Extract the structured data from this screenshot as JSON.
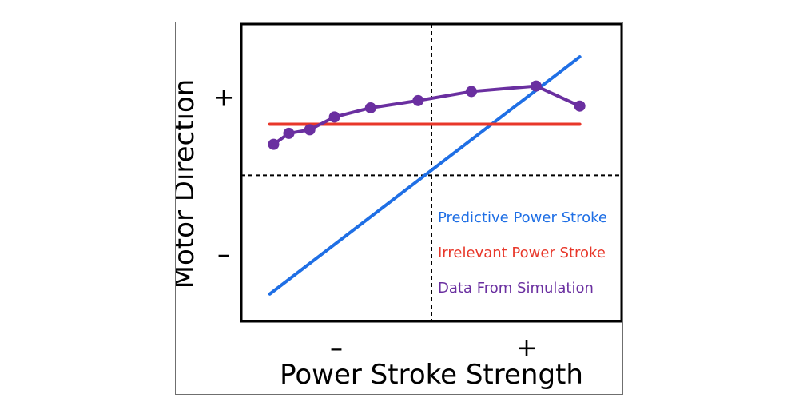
{
  "chart_data": {
    "type": "line",
    "xlabel": "Power Stroke Strength",
    "ylabel": "Motor Direction",
    "x_ticks": [
      {
        "x": -0.5,
        "label": "–"
      },
      {
        "x": 0.5,
        "label": "+"
      }
    ],
    "y_ticks": [
      {
        "y": 0.43,
        "label": "+"
      },
      {
        "y": -0.43,
        "label": "–"
      }
    ],
    "xlim": [
      -1,
      1
    ],
    "ylim": [
      -0.8,
      0.83
    ],
    "reference_lines": {
      "x": 0,
      "y": 0,
      "style": "dashed"
    },
    "legend_position": "bottom-right",
    "series": [
      {
        "name": "Predictive Power Stroke",
        "color": "#1f6fe5",
        "kind": "line",
        "points": [
          [
            -0.85,
            -0.65
          ],
          [
            0.78,
            0.65
          ]
        ]
      },
      {
        "name": "Irrelevant Power Stroke",
        "color": "#e8372a",
        "kind": "line",
        "points": [
          [
            -0.85,
            0.28
          ],
          [
            0.78,
            0.28
          ]
        ]
      },
      {
        "name": "Data From Simulation",
        "color": "#6a2fa0",
        "kind": "line+markers",
        "points": [
          [
            -0.83,
            0.17
          ],
          [
            -0.75,
            0.23
          ],
          [
            -0.64,
            0.25
          ],
          [
            -0.51,
            0.32
          ],
          [
            -0.32,
            0.37
          ],
          [
            -0.07,
            0.41
          ],
          [
            0.21,
            0.46
          ],
          [
            0.55,
            0.49
          ],
          [
            0.78,
            0.38
          ]
        ]
      }
    ]
  }
}
